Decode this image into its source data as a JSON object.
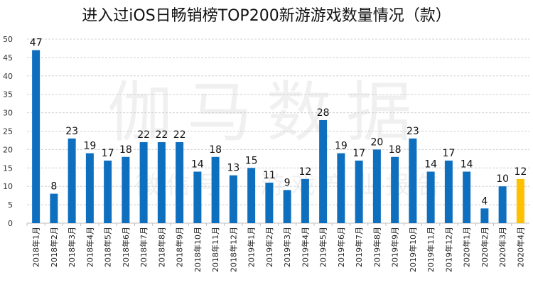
{
  "chart_data": {
    "type": "bar",
    "title": "进入过iOS日畅销榜TOP200新游游戏数量情况（款）",
    "categories": [
      "2018年1月",
      "2018年2月",
      "2018年3月",
      "2018年4月",
      "2018年5月",
      "2018年6月",
      "2018年7月",
      "2018年8月",
      "2018年9月",
      "2018年10月",
      "2018年11月",
      "2018年12月",
      "2019年1月",
      "2019年2月",
      "2019年3月",
      "2019年4月",
      "2019年5月",
      "2019年6月",
      "2019年7月",
      "2019年8月",
      "2019年9月",
      "2019年10月",
      "2019年11月",
      "2019年12月",
      "2020年1月",
      "2020年2月",
      "2020年3月",
      "2020年4月"
    ],
    "values": [
      47,
      8,
      23,
      19,
      17,
      18,
      22,
      22,
      22,
      14,
      18,
      13,
      15,
      11,
      9,
      12,
      28,
      19,
      17,
      20,
      18,
      23,
      14,
      17,
      14,
      4,
      10,
      12
    ],
    "ylim": [
      0,
      50
    ],
    "yticks": [
      0,
      5,
      10,
      15,
      20,
      25,
      30,
      35,
      40,
      45,
      50
    ],
    "grid": true,
    "xlabel": "",
    "ylabel": "",
    "colors": {
      "bar": "#0F6FBF",
      "highlight": "#FFC000",
      "highlight_index": 27
    }
  },
  "watermark": {
    "main": "伽马数据",
    "sub": "微信号：游戏产业报告"
  }
}
